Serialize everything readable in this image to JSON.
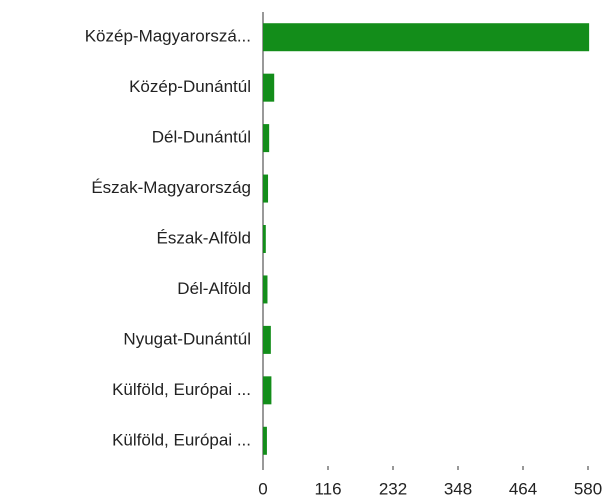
{
  "chart_data": {
    "type": "hbar",
    "categories": [
      "Közép-Magyarorszá...",
      "Közép-Dunántúl",
      "Dél-Dunántúl",
      "Észak-Magyarország",
      "Észak-Alföld",
      "Dél-Alföld",
      "Nyugat-Dunántúl",
      "Külföld, Európai ...",
      "Külföld, Európai ..."
    ],
    "values": [
      582,
      20,
      11,
      9,
      5,
      8,
      14,
      15,
      7
    ],
    "color": "#138d1a",
    "xlim": [
      0,
      580
    ],
    "xticks": [
      0,
      116,
      232,
      348,
      464,
      580
    ],
    "grid": false
  }
}
